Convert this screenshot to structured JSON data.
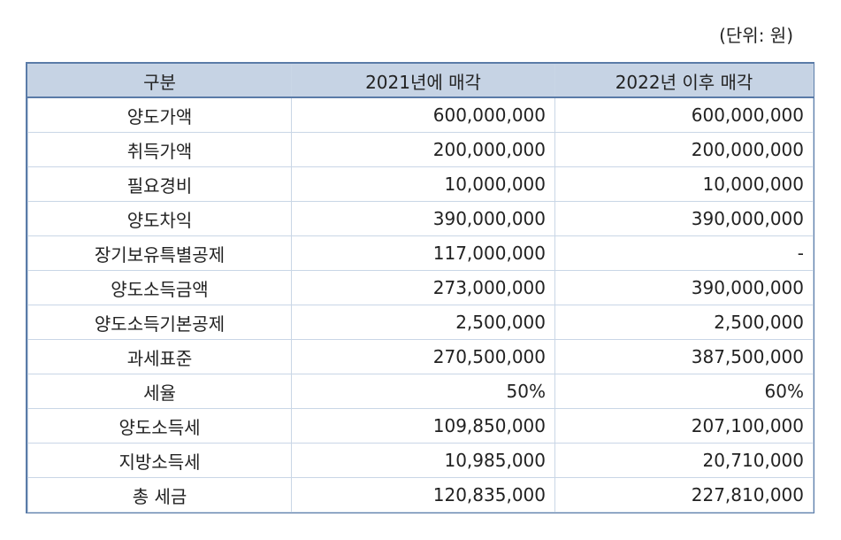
{
  "unit_label": "(단위: 원)",
  "table": {
    "headers": [
      "구분",
      "2021년에 매각",
      "2022년 이후 매각"
    ],
    "rows": [
      {
        "label": "양도가액",
        "y2021": "600,000,000",
        "y2022": "600,000,000"
      },
      {
        "label": "취득가액",
        "y2021": "200,000,000",
        "y2022": "200,000,000"
      },
      {
        "label": "필요경비",
        "y2021": "10,000,000",
        "y2022": "10,000,000"
      },
      {
        "label": "양도차익",
        "y2021": "390,000,000",
        "y2022": "390,000,000"
      },
      {
        "label": "장기보유특별공제",
        "y2021": "117,000,000",
        "y2022": "-"
      },
      {
        "label": "양도소득금액",
        "y2021": "273,000,000",
        "y2022": "390,000,000"
      },
      {
        "label": "양도소득기본공제",
        "y2021": "2,500,000",
        "y2022": "2,500,000"
      },
      {
        "label": "과세표준",
        "y2021": "270,500,000",
        "y2022": "387,500,000"
      },
      {
        "label": "세율",
        "y2021": "50%",
        "y2022": "60%"
      },
      {
        "label": "양도소득세",
        "y2021": "109,850,000",
        "y2022": "207,100,000"
      },
      {
        "label": "지방소득세",
        "y2021": "10,985,000",
        "y2022": "20,710,000"
      },
      {
        "label": "총 세금",
        "y2021": "120,835,000",
        "y2022": "227,810,000"
      }
    ]
  }
}
